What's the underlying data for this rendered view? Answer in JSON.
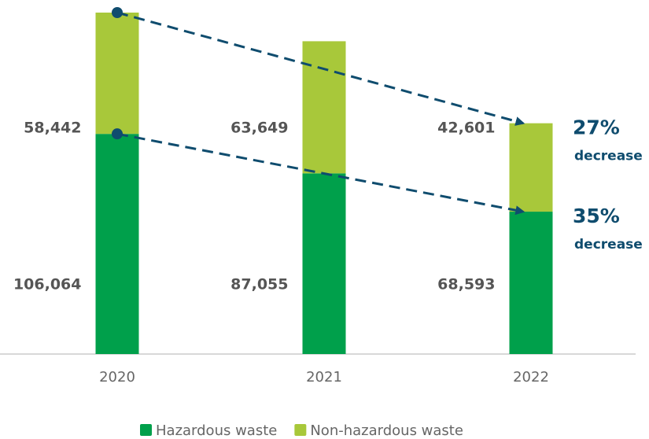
{
  "chart_data": {
    "type": "stacked_bar",
    "categories": [
      "2020",
      "2021",
      "2022"
    ],
    "series": [
      {
        "name": "Hazardous waste",
        "color": "#00a04b",
        "values": [
          106064,
          87055,
          68593
        ],
        "value_labels": [
          "106,064",
          "87,055",
          "68,593"
        ]
      },
      {
        "name": "Non-hazardous waste",
        "color": "#a8c83a",
        "values": [
          58442,
          63649,
          42601
        ],
        "value_labels": [
          "58,442",
          "63,649",
          "42,601"
        ]
      }
    ],
    "annotations": [
      {
        "text": "27%",
        "subtext": "decrease"
      },
      {
        "text": "35%",
        "subtext": "decrease"
      }
    ]
  }
}
